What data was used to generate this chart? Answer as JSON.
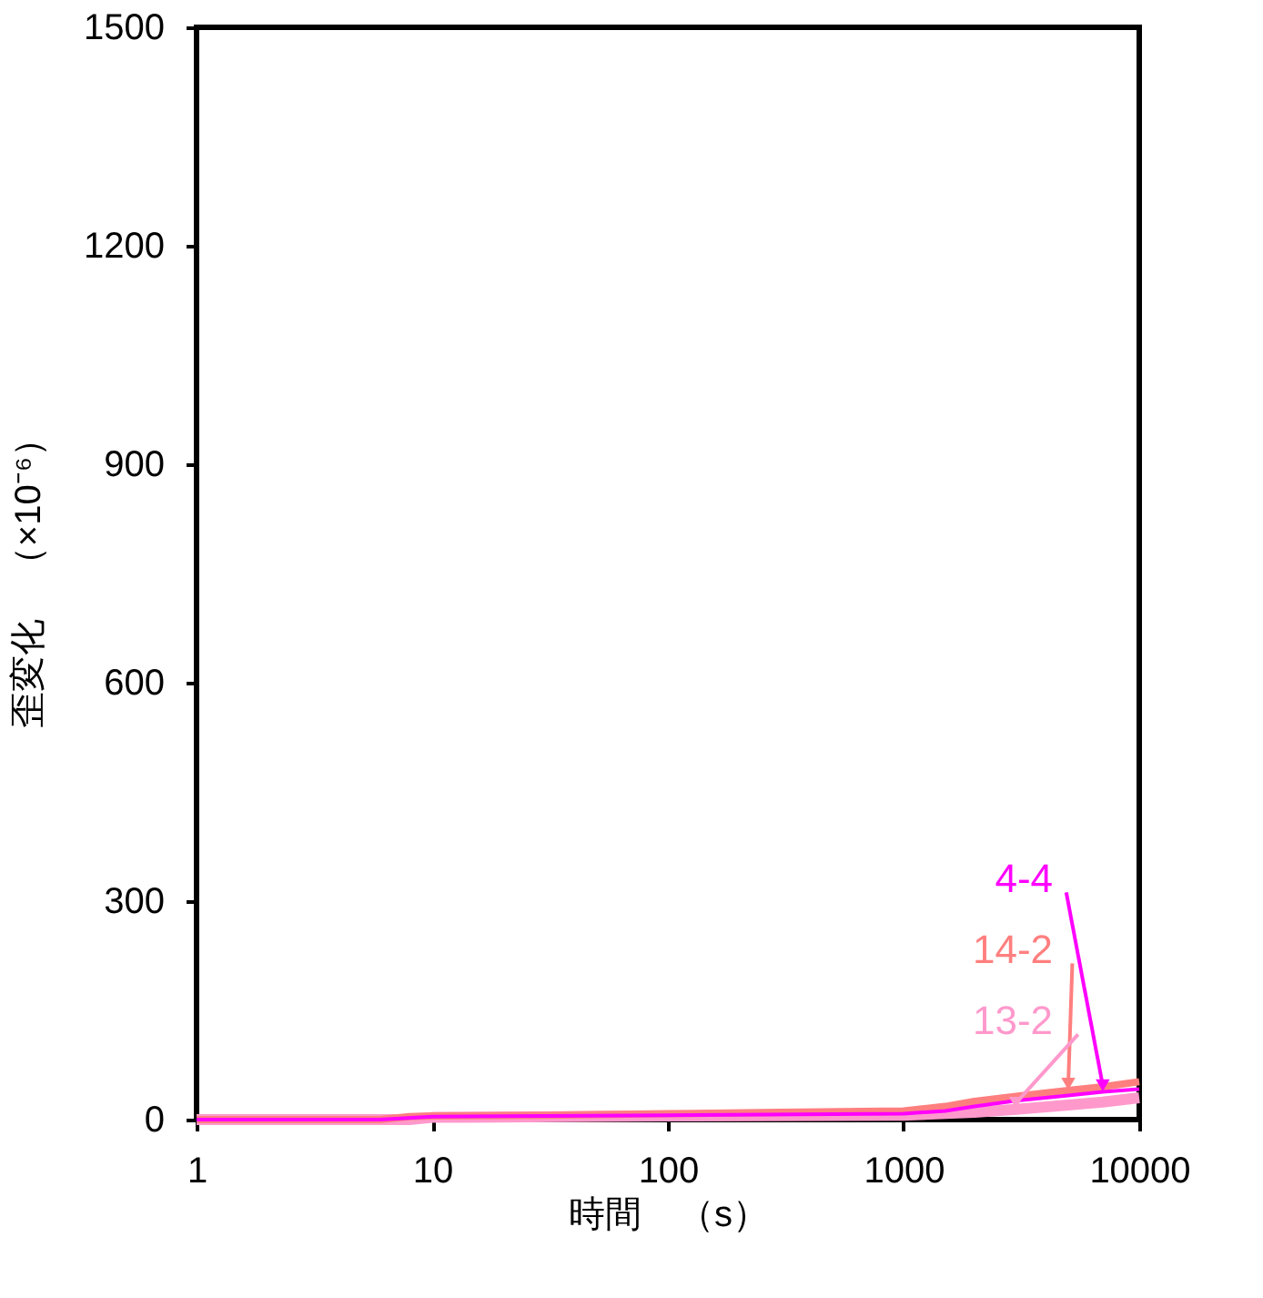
{
  "chart_data": {
    "type": "line",
    "xlabel": "時間　（s）",
    "ylabel": "歪変化　（×10⁻⁶）",
    "log": "x",
    "xlim": [
      1,
      10000
    ],
    "xticks": [
      1,
      10,
      100,
      1000,
      10000
    ],
    "ylim": [
      0,
      1500
    ],
    "yticks": [
      0,
      300,
      600,
      900,
      1200,
      1500
    ],
    "grid": false,
    "legend": false,
    "marker": "none",
    "line_style": "solid",
    "series": [
      {
        "name": "4-4",
        "color": "#ff00ff",
        "x": [
          1,
          6,
          10,
          100,
          1000,
          1500,
          2000,
          3000,
          5000,
          7000,
          10000
        ],
        "values": [
          0,
          0,
          4,
          6,
          8,
          12,
          18,
          26,
          33,
          38,
          42
        ]
      },
      {
        "name": "14-2",
        "color": "#ff7f7f",
        "x": [
          1,
          3,
          6,
          8,
          10,
          30,
          100,
          300,
          1000,
          1500,
          2000,
          3000,
          5000,
          7000,
          10000
        ],
        "values": [
          0,
          0,
          0,
          4,
          5,
          6,
          8,
          10,
          12,
          18,
          25,
          32,
          40,
          45,
          52
        ]
      },
      {
        "name": "13-2",
        "color": "#ff99cc",
        "x": [
          1,
          8,
          10,
          100,
          1000,
          2000,
          3000,
          5000,
          7000,
          10000
        ],
        "values": [
          0,
          0,
          3,
          5,
          6,
          10,
          14,
          20,
          24,
          30
        ]
      }
    ]
  }
}
